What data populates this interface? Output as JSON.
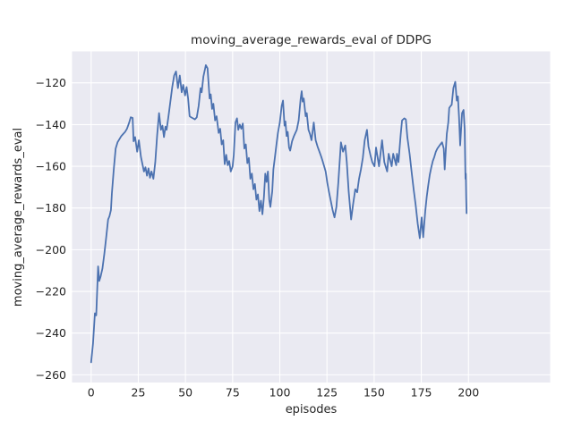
{
  "figure": {
    "background_color": "#ffffff",
    "axes_background_color": "#eaeaf2",
    "grid_color": "#ffffff",
    "text_color": "#262626",
    "line_color": "#4c72b0"
  },
  "chart_data": {
    "type": "line",
    "title": "moving_average_rewards_eval of DDPG",
    "xlabel": "episodes",
    "ylabel": "moving_average_rewards_eval",
    "grid": true,
    "legend_position": "none",
    "xlim": [
      -10.1,
      243.3
    ],
    "ylim": [
      -263.7,
      -104.9
    ],
    "xticks": [
      0,
      25,
      50,
      75,
      100,
      125,
      150,
      175,
      200
    ],
    "xtick_labels": [
      "0",
      "25",
      "50",
      "75",
      "100",
      "125",
      "150",
      "175",
      "200"
    ],
    "yticks": [
      -260,
      -240,
      -220,
      -200,
      -180,
      -160,
      -140,
      -120
    ],
    "ytick_labels": [
      "−260",
      "−240",
      "−220",
      "−200",
      "−180",
      "−160",
      "−140",
      "−120"
    ],
    "series_name": "moving_average_rewards_eval",
    "x": [
      0,
      1,
      2,
      2.7,
      3.7,
      4.3,
      5,
      6,
      7,
      8,
      9,
      9.7,
      10.5,
      11,
      12,
      13,
      14,
      15,
      16,
      17,
      18,
      19,
      20,
      21,
      22,
      22.5,
      23.3,
      24.4,
      25.3,
      26.4,
      27.2,
      28,
      28.8,
      29.6,
      30.4,
      31.2,
      32,
      33,
      34,
      35,
      36,
      37,
      37.8,
      38.6,
      39.4,
      40,
      41,
      42,
      43,
      44,
      45,
      46,
      47,
      48,
      48.8,
      49.8,
      50.6,
      51.4,
      52.2,
      53,
      54,
      55,
      56,
      57,
      58,
      58.6,
      59.5,
      60.8,
      61.7,
      62.8,
      63.4,
      64.1,
      64.8,
      65.7,
      66.5,
      67.6,
      68.4,
      69.2,
      70,
      70.8,
      71.6,
      72.4,
      73.2,
      74,
      75,
      75.6,
      76.5,
      77.3,
      78,
      78.8,
      79.6,
      80.4,
      81.2,
      82,
      82.8,
      83.6,
      84.4,
      85.2,
      86,
      86.8,
      87.6,
      88.4,
      89.2,
      90,
      90.8,
      91.6,
      92.3,
      93,
      93.7,
      94.4,
      95,
      96,
      96.6,
      97.5,
      98.3,
      99,
      100,
      101,
      101.7,
      102.5,
      103,
      103.6,
      104.2,
      104.9,
      105.5,
      106.5,
      107.5,
      109,
      110,
      111,
      111.6,
      112.1,
      112.7,
      113.7,
      114.3,
      115.2,
      116,
      116.8,
      118,
      119,
      120,
      121,
      122,
      122.7,
      123.5,
      124.3,
      125.2,
      126,
      127,
      128,
      129,
      130,
      131,
      132.4,
      133.5,
      134.7,
      135.5,
      136.5,
      137.8,
      138.8,
      140,
      141,
      142,
      143,
      144,
      145,
      146.2,
      147,
      148,
      149,
      150.2,
      151,
      152.6,
      154.2,
      155.4,
      156.9,
      157.7,
      159.3,
      160.1,
      161.7,
      162.1,
      162.9,
      164.1,
      164.8,
      166,
      166.8,
      167.6,
      168.8,
      169.9,
      171,
      172,
      173.1,
      174.2,
      175.2,
      176,
      177.1,
      177.9,
      178.7,
      179.5,
      180.3,
      181.1,
      181.9,
      182.7,
      183.5,
      184.3,
      185.1,
      186,
      186.9,
      187.4,
      188,
      188.5,
      189.3,
      189.8,
      190.6,
      191.1,
      192,
      193,
      193.8,
      194.4,
      195,
      195.6,
      196.6,
      197.4,
      198,
      198.4,
      198.6,
      198.8,
      199
    ],
    "y": [
      -254,
      -245,
      -230.5,
      -231.5,
      -208,
      -215,
      -213,
      -209,
      -202,
      -194,
      -185.5,
      -184,
      -181,
      -173,
      -161.5,
      -151.5,
      -148.5,
      -147,
      -145.5,
      -144.5,
      -143.5,
      -142,
      -139.5,
      -136.5,
      -136.8,
      -148,
      -146,
      -153,
      -147.5,
      -155.5,
      -159,
      -162.5,
      -160.5,
      -164.5,
      -161,
      -165.5,
      -162.5,
      -166,
      -158,
      -145,
      -134.5,
      -142.5,
      -140.5,
      -146,
      -141,
      -142.5,
      -136,
      -129,
      -122,
      -116.5,
      -114.5,
      -122.5,
      -116.5,
      -124.5,
      -121,
      -126,
      -122,
      -127.5,
      -136,
      -136.5,
      -137,
      -137.5,
      -136.5,
      -131,
      -122.5,
      -124.5,
      -117,
      -111.5,
      -113,
      -127.5,
      -125.5,
      -132.5,
      -130,
      -138,
      -136,
      -144,
      -142,
      -149.5,
      -147.5,
      -159,
      -154.5,
      -159.5,
      -157.5,
      -162.5,
      -160,
      -154.5,
      -139,
      -137,
      -142.5,
      -140,
      -142,
      -139.5,
      -151.5,
      -149.5,
      -158.5,
      -156,
      -166,
      -163.5,
      -171,
      -168.5,
      -176,
      -173.5,
      -181.5,
      -176.5,
      -183,
      -174.5,
      -163.5,
      -167.5,
      -162.5,
      -176,
      -179.5,
      -172,
      -161.5,
      -155,
      -149,
      -144,
      -139,
      -131,
      -128.5,
      -140.5,
      -138.5,
      -145.5,
      -143.5,
      -151,
      -152.5,
      -148,
      -145.5,
      -142.5,
      -138,
      -128,
      -124,
      -129,
      -127.5,
      -136,
      -134.5,
      -142.5,
      -144.5,
      -147.5,
      -139,
      -147.5,
      -150.5,
      -153,
      -155.5,
      -157.5,
      -160,
      -162.5,
      -168,
      -172,
      -176.5,
      -181,
      -184.5,
      -179.5,
      -168,
      -148.5,
      -153,
      -150,
      -158,
      -172,
      -185.5,
      -178.5,
      -171,
      -172.5,
      -166,
      -161.5,
      -156,
      -147.5,
      -142.5,
      -150.5,
      -154.5,
      -158,
      -160,
      -151,
      -160,
      -147.5,
      -158,
      -162.5,
      -154,
      -160,
      -154,
      -159.5,
      -154,
      -158,
      -144.5,
      -138,
      -137,
      -137.5,
      -146,
      -154,
      -163,
      -171.5,
      -178.5,
      -187.5,
      -194.5,
      -184.5,
      -194,
      -181.5,
      -174.5,
      -169,
      -164,
      -160.5,
      -157.5,
      -155.5,
      -153,
      -151.5,
      -150.5,
      -149.5,
      -148.5,
      -151.5,
      -161.5,
      -152,
      -144.5,
      -139,
      -132,
      -131,
      -130.5,
      -122.5,
      -119.5,
      -128.5,
      -126.5,
      -136.5,
      -150,
      -134.5,
      -133,
      -142.5,
      -166,
      -163.5,
      -175,
      -182.5
    ]
  }
}
